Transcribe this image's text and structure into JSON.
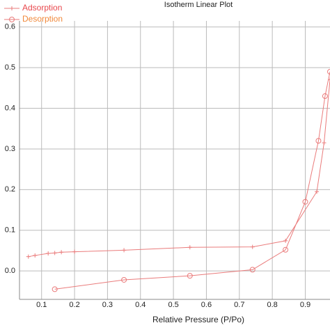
{
  "chart_data": {
    "type": "line",
    "title": "Isotherm Linear Plot",
    "x_label": "Relative Pressure (P/Po)",
    "xlim": [
      0.033,
      0.975
    ],
    "ylim": [
      -0.07,
      0.615
    ],
    "xticks": [
      0.1,
      0.2,
      0.3,
      0.4,
      0.5,
      0.6,
      0.7,
      0.8,
      0.9
    ],
    "yticks": [
      {
        "value": 0,
        "label": "0.0"
      },
      0.1,
      0.2,
      0.3,
      0.4,
      0.5,
      0.6
    ],
    "grid": true,
    "legend": "top-left",
    "series": [
      {
        "name": "Adsorption",
        "color": "#ea7b7b",
        "legend_color": "#e8474c",
        "marker": "plus",
        "x": [
          0.06,
          0.08,
          0.12,
          0.14,
          0.16,
          0.2,
          0.35,
          0.55,
          0.74,
          0.84,
          0.935,
          0.957,
          0.975
        ],
        "values": [
          0.035,
          0.038,
          0.043,
          0.044,
          0.046,
          0.047,
          0.051,
          0.058,
          0.059,
          0.074,
          0.195,
          0.315,
          0.47
        ]
      },
      {
        "name": "Desorption",
        "color": "#ea7b7b",
        "legend_color": "#f0883a",
        "marker": "circle",
        "x": [
          0.14,
          0.35,
          0.55,
          0.74,
          0.84,
          0.9,
          0.94,
          0.96,
          0.975
        ],
        "values": [
          -0.045,
          -0.022,
          -0.012,
          0.003,
          0.052,
          0.17,
          0.32,
          0.43,
          0.49
        ]
      }
    ]
  }
}
